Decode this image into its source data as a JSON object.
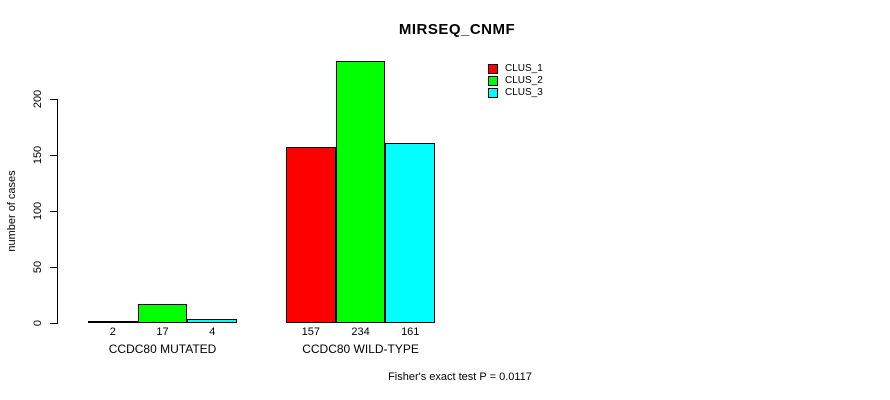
{
  "chart_data": {
    "type": "bar",
    "title": "MIRSEQ_CNMF",
    "ylabel": "number of cases",
    "xlabel": "",
    "categories": [
      "CCDC80 MUTATED",
      "CCDC80 WILD-TYPE"
    ],
    "series": [
      {
        "name": "CLUS_1",
        "color": "#ff0000",
        "values": [
          2,
          157
        ]
      },
      {
        "name": "CLUS_2",
        "color": "#00ff00",
        "values": [
          17,
          234
        ]
      },
      {
        "name": "CLUS_3",
        "color": "#00ffff",
        "values": [
          4,
          161
        ]
      }
    ],
    "bar_value_labels": [
      [
        "2",
        "17",
        "4"
      ],
      [
        "157",
        "234",
        "161"
      ]
    ],
    "yticks": [
      0,
      50,
      100,
      150,
      200
    ],
    "ylim": [
      0,
      240
    ],
    "grid": false,
    "legend_position": "top-right",
    "footer": "Fisher's exact test P = 0.0117"
  }
}
